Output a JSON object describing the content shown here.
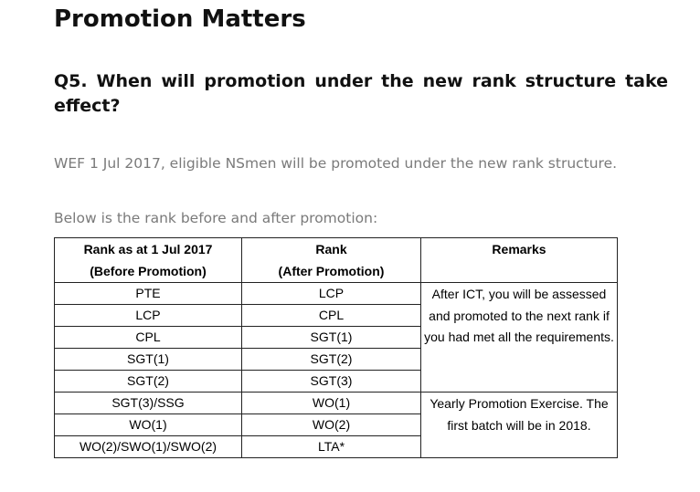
{
  "title": "Promotion Matters",
  "question": "Q5. When will promotion under the new rank structure take effect?",
  "paragraphs": {
    "effective": "WEF 1 Jul 2017, eligible NSmen will be promoted under the new rank structure.",
    "intro": "Below is the rank before and after promotion:"
  },
  "table": {
    "headers": {
      "before_line1": "Rank as at 1 Jul 2017",
      "before_line2": "(Before Promotion)",
      "after_line1": "Rank",
      "after_line2": "(After Promotion)",
      "remarks": "Remarks"
    },
    "rows": [
      {
        "before": "PTE",
        "after": "LCP"
      },
      {
        "before": "LCP",
        "after": "CPL"
      },
      {
        "before": "CPL",
        "after": "SGT(1)"
      },
      {
        "before": "SGT(1)",
        "after": "SGT(2)"
      },
      {
        "before": "SGT(2)",
        "after": "SGT(3)"
      },
      {
        "before": "SGT(3)/SSG",
        "after": "WO(1)"
      },
      {
        "before": "WO(1)",
        "after": "WO(2)"
      },
      {
        "before": "WO(2)/SWO(1)/SWO(2)",
        "after": "LTA*"
      }
    ],
    "remarks": [
      "After ICT, you will be assessed and promoted to the next rank if you had met all the requirements.",
      "Yearly Promotion Exercise. The first batch will be in 2018."
    ]
  }
}
